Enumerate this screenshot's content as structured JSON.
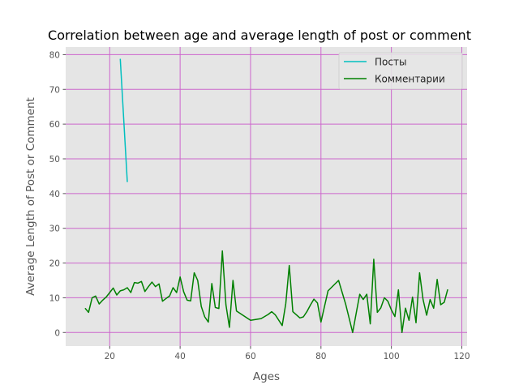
{
  "chart_data": {
    "type": "line",
    "title": "Correlation between age and average length of post or comment",
    "xlabel": "Ages",
    "ylabel": "Average Length of Post or Comment",
    "xlim": [
      7.5,
      121.5
    ],
    "ylim": [
      -3.9,
      82.2
    ],
    "xticks": [
      20,
      40,
      60,
      80,
      100,
      120
    ],
    "yticks": [
      0,
      10,
      20,
      30,
      40,
      50,
      60,
      70,
      80
    ],
    "grid": true,
    "legend_position": "top-right",
    "series": [
      {
        "name": "Посты",
        "color": "#00bfbf",
        "x": [
          23,
          25
        ],
        "y": [
          78.8,
          43.3
        ]
      },
      {
        "name": "Комментарии",
        "color": "#008000",
        "x": [
          13,
          14,
          15,
          16,
          17,
          18,
          19,
          20,
          21,
          22,
          23,
          24,
          25,
          26,
          27,
          28,
          29,
          30,
          31,
          32,
          33,
          34,
          35,
          36,
          37,
          38,
          39,
          40,
          41,
          42,
          43,
          44,
          45,
          46,
          47,
          48,
          49,
          50,
          51,
          52,
          53,
          54,
          55,
          56,
          60,
          63,
          65,
          66,
          67,
          69,
          70,
          71,
          72,
          74,
          75,
          76,
          77,
          78,
          79,
          80,
          82,
          83,
          85,
          87,
          89,
          90,
          91,
          92,
          93,
          94,
          95,
          96,
          97,
          98,
          99,
          100,
          101,
          102,
          103,
          104,
          105,
          106,
          107,
          108,
          109,
          110,
          111,
          112,
          113,
          114,
          115,
          116
        ],
        "y": [
          7,
          5.8,
          10,
          10.5,
          8.2,
          9.3,
          10.2,
          11.5,
          12.8,
          10.8,
          12,
          12.3,
          12.9,
          11.5,
          14.4,
          14.2,
          14.7,
          11.8,
          13.2,
          14.5,
          13.2,
          14,
          9,
          9.8,
          10.5,
          12.9,
          11.5,
          16,
          11.7,
          9.3,
          9.1,
          17.2,
          15,
          7.5,
          4.5,
          3,
          14.1,
          7.2,
          6.9,
          23.5,
          8,
          1.5,
          15,
          6.2,
          3.5,
          4,
          5.2,
          6,
          5.1,
          2,
          8.3,
          19.3,
          6,
          4.2,
          4.5,
          6,
          7.9,
          9.6,
          8.5,
          3,
          12,
          13,
          15,
          8.2,
          0,
          5.5,
          11,
          9.5,
          11,
          2.5,
          21.1,
          5.8,
          7.1,
          10,
          9,
          6.5,
          4.6,
          12.3,
          0,
          7,
          3.5,
          10.2,
          2.8,
          17.2,
          9.5,
          5,
          9.5,
          7,
          15.3,
          8,
          8.7,
          12.4
        ]
      }
    ]
  }
}
